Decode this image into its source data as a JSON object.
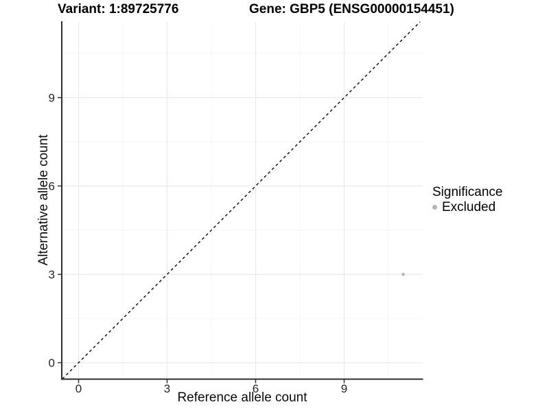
{
  "header": {
    "variant_title": "Variant: 1:89725776",
    "gene_title": "Gene: GBP5 (ENSG00000154451)"
  },
  "legend": {
    "title": "Significance",
    "items": [
      {
        "label": "Excluded",
        "color": "#b5b5b5"
      }
    ]
  },
  "chart_data": {
    "type": "scatter",
    "title": "Variant: 1:89725776 | Gene: GBP5 (ENSG00000154451)",
    "xlabel": "Reference allele count",
    "ylabel": "Alternative allele count",
    "xlim": [
      -0.57,
      11.66
    ],
    "ylim": [
      -0.55,
      11.57
    ],
    "x_ticks": [
      0,
      3,
      6,
      9
    ],
    "y_ticks": [
      0,
      3,
      6,
      9
    ],
    "x_minor_ticks": [
      1.5,
      4.5,
      7.5,
      10.5
    ],
    "y_minor_ticks": [
      1.5,
      4.5,
      7.5,
      10.5
    ],
    "grid": "major and minor gridlines, light grey on white panel",
    "legend_position": "right",
    "legend_title": "Significance",
    "series": [
      {
        "name": "Excluded",
        "color": "#b5b5b5",
        "points": [
          {
            "x": 11,
            "y": 3
          }
        ]
      }
    ],
    "reference_line": {
      "type": "identity",
      "equation": "y = x",
      "style": "dashed",
      "color": "#000000"
    }
  },
  "colors": {
    "background": "#ffffff",
    "grid_major": "#e9e9e9",
    "grid_minor": "#f5f5f5",
    "axis_line": "#2e2e2e",
    "tick_mark": "#333333",
    "tick_text": "#262626",
    "point": "#b5b5b5"
  }
}
